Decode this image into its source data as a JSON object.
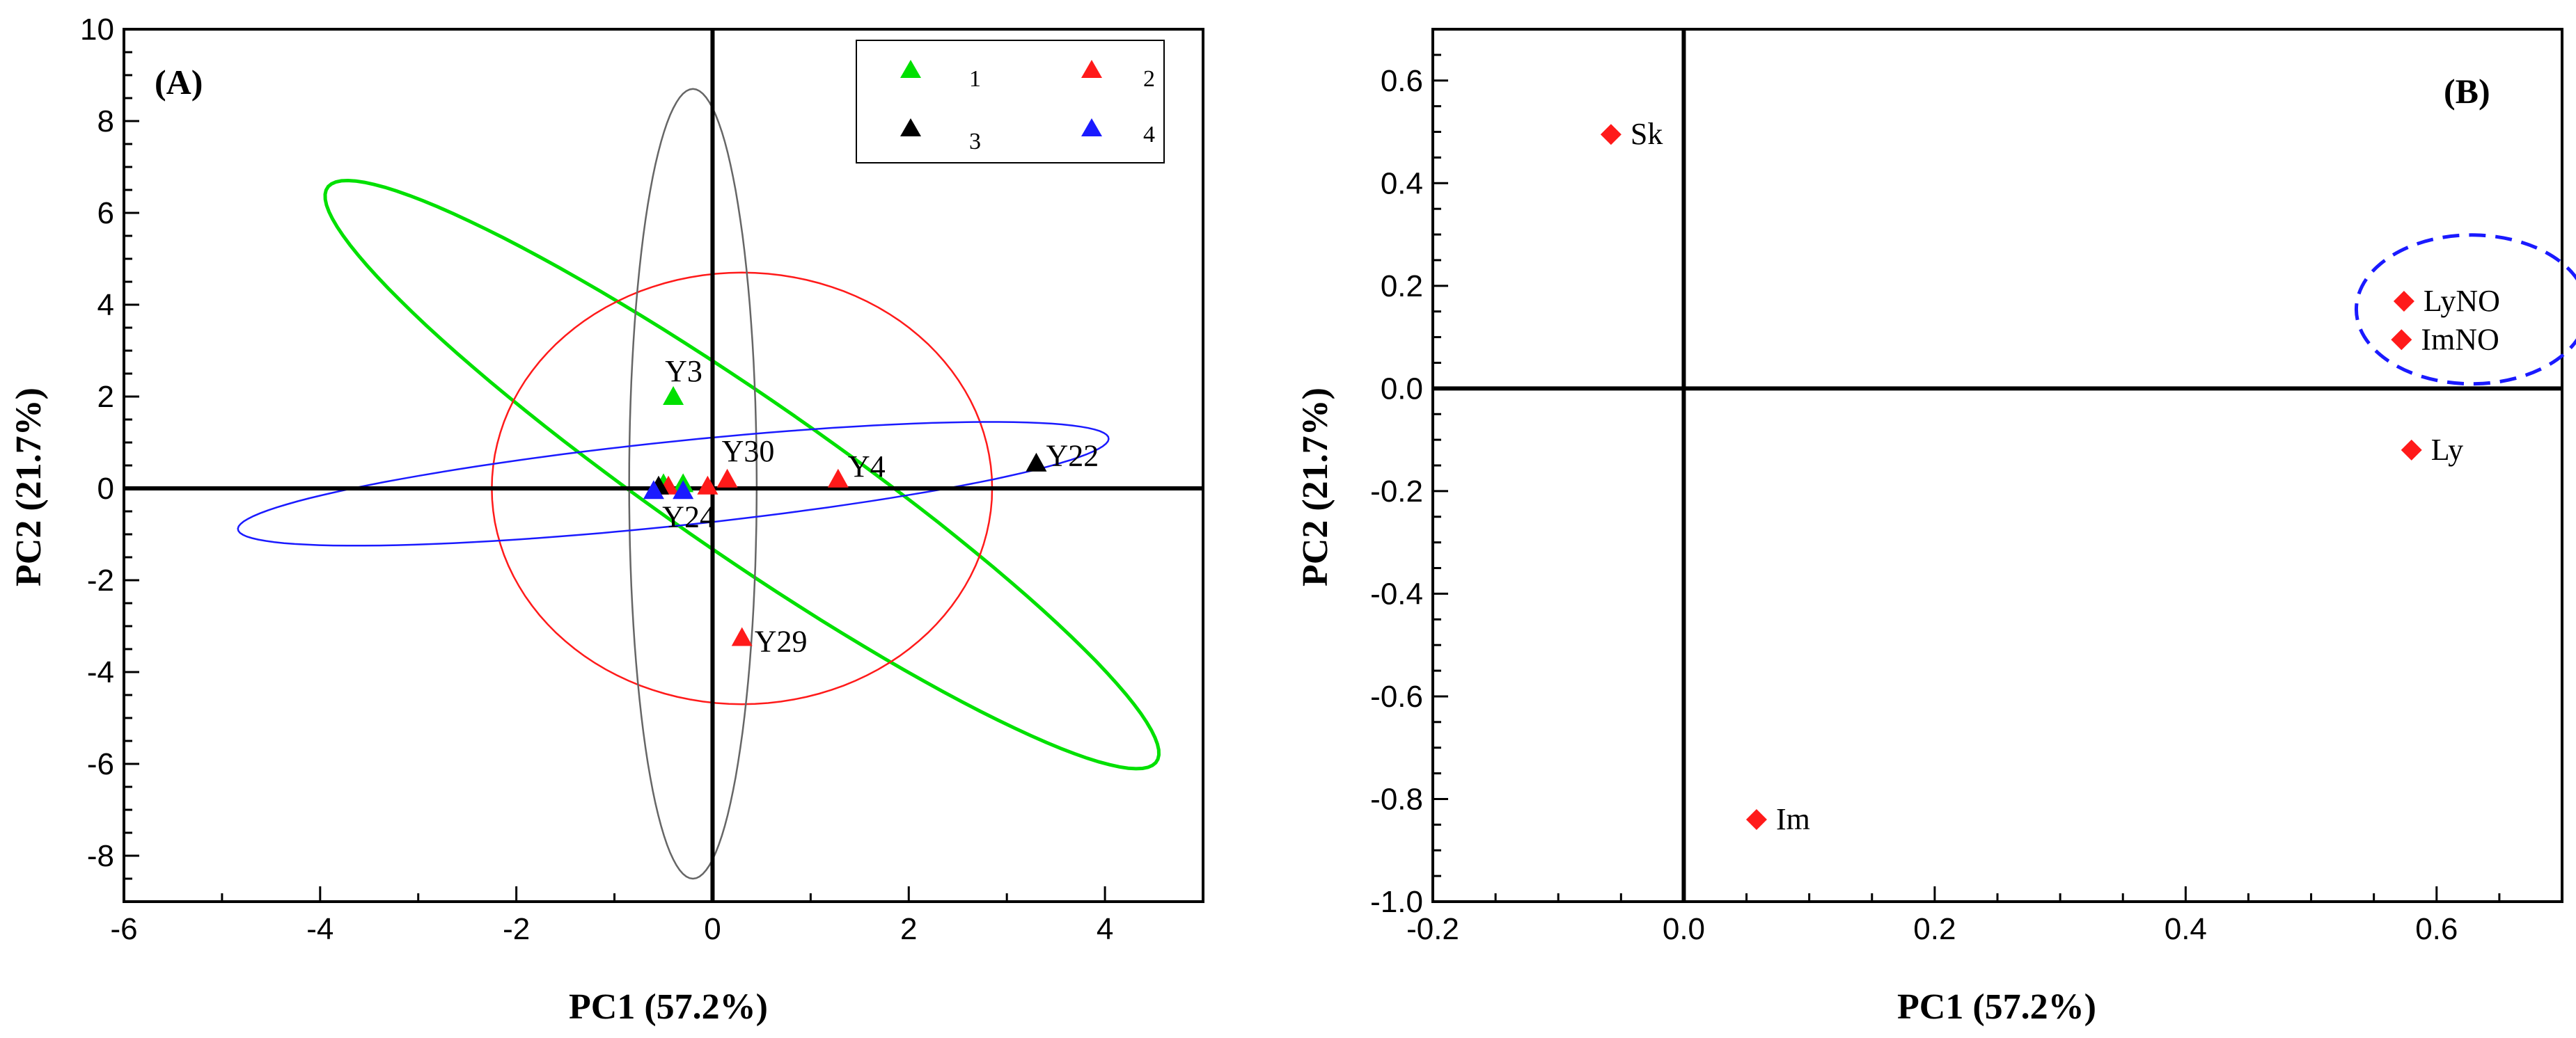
{
  "chart_data": [
    {
      "type": "scatter",
      "panel": "(A)",
      "xlabel": "PC1 (57.2%)",
      "ylabel": "PC2 (21.7%)",
      "xlim": [
        -6,
        5
      ],
      "ylim": [
        -9,
        10
      ],
      "xticks": [
        -6,
        -4,
        -2,
        0,
        2,
        4
      ],
      "yticks": [
        -8,
        -6,
        -4,
        -2,
        0,
        2,
        4,
        6,
        8,
        10
      ],
      "colors": {
        "1": "#00e000",
        "2": "#ff1a1a",
        "3": "#000000",
        "4": "#1a1aff"
      },
      "legend": [
        {
          "label": "1",
          "color": "#00e000"
        },
        {
          "label": "2",
          "color": "#ff1a1a"
        },
        {
          "label": "3",
          "color": "#000000"
        },
        {
          "label": "4",
          "color": "#1a1aff"
        }
      ],
      "points": [
        {
          "group": "1",
          "x": -0.4,
          "y": 2.0,
          "label": "Y3"
        },
        {
          "group": "1",
          "x": -0.3,
          "y": 0.1,
          "label": ""
        },
        {
          "group": "1",
          "x": -0.5,
          "y": 0.1,
          "label": ""
        },
        {
          "group": "2",
          "x": 0.15,
          "y": 0.2,
          "label": "Y30"
        },
        {
          "group": "2",
          "x": 1.28,
          "y": 0.2,
          "label": "Y4"
        },
        {
          "group": "2",
          "x": 0.3,
          "y": -3.25,
          "label": "Y29"
        },
        {
          "group": "2",
          "x": -0.45,
          "y": 0.05,
          "label": ""
        },
        {
          "group": "2",
          "x": -0.05,
          "y": 0.05,
          "label": ""
        },
        {
          "group": "3",
          "x": 3.3,
          "y": 0.55,
          "label": "Y22"
        },
        {
          "group": "3",
          "x": -0.55,
          "y": 0.05,
          "label": ""
        },
        {
          "group": "4",
          "x": -0.6,
          "y": -0.05,
          "label": ""
        },
        {
          "group": "4",
          "x": -0.3,
          "y": -0.05,
          "label": "Y24"
        }
      ],
      "ellipses": [
        {
          "group": "1",
          "cx": 0.3,
          "cy": 0.3,
          "rx": 7.6,
          "ry": 1.15,
          "angle_deg": -57
        },
        {
          "group": "2",
          "cx": 0.3,
          "cy": 0.0,
          "rx": 2.55,
          "ry": 4.7,
          "angle_deg": 0
        },
        {
          "group": "3",
          "cx": -0.2,
          "cy": 0.1,
          "rx": 0.65,
          "ry": 8.6,
          "angle_deg": 0
        },
        {
          "group": "4",
          "cx": -0.4,
          "cy": 0.1,
          "rx": 4.55,
          "ry": 0.9,
          "angle_deg": 13
        }
      ]
    },
    {
      "type": "scatter",
      "panel": "(B)",
      "xlabel": "PC1 (57.2%)",
      "ylabel": "PC2 (21.7%)",
      "xlim": [
        -0.2,
        0.7
      ],
      "ylim": [
        -1.0,
        0.7
      ],
      "xticks": [
        -0.2,
        0.0,
        0.2,
        0.4,
        0.6
      ],
      "yticks": [
        -1.0,
        -0.8,
        -0.6,
        -0.4,
        -0.2,
        0.0,
        0.2,
        0.4,
        0.6
      ],
      "tick_labels_x": [
        "-0.2",
        "0.0",
        "0.2",
        "0.4",
        "0.6"
      ],
      "tick_labels_y": [
        "-1.0",
        "-0.8",
        "-0.6",
        "-0.4",
        "-0.2",
        "0.0",
        "0.2",
        "0.4",
        "0.6"
      ],
      "point_color": "#ff1a1a",
      "highlight_color": "#1a1aff",
      "points": [
        {
          "label": "Sk",
          "x": -0.058,
          "y": 0.495
        },
        {
          "label": "LyNO",
          "x": 0.574,
          "y": 0.17
        },
        {
          "label": "ImNO",
          "x": 0.572,
          "y": 0.095
        },
        {
          "label": "Ly",
          "x": 0.58,
          "y": -0.12
        },
        {
          "label": "Im",
          "x": 0.058,
          "y": -0.84
        }
      ],
      "highlight": {
        "cx": 0.628,
        "cy": 0.154,
        "rx": 0.092,
        "ry": 0.145
      }
    }
  ]
}
